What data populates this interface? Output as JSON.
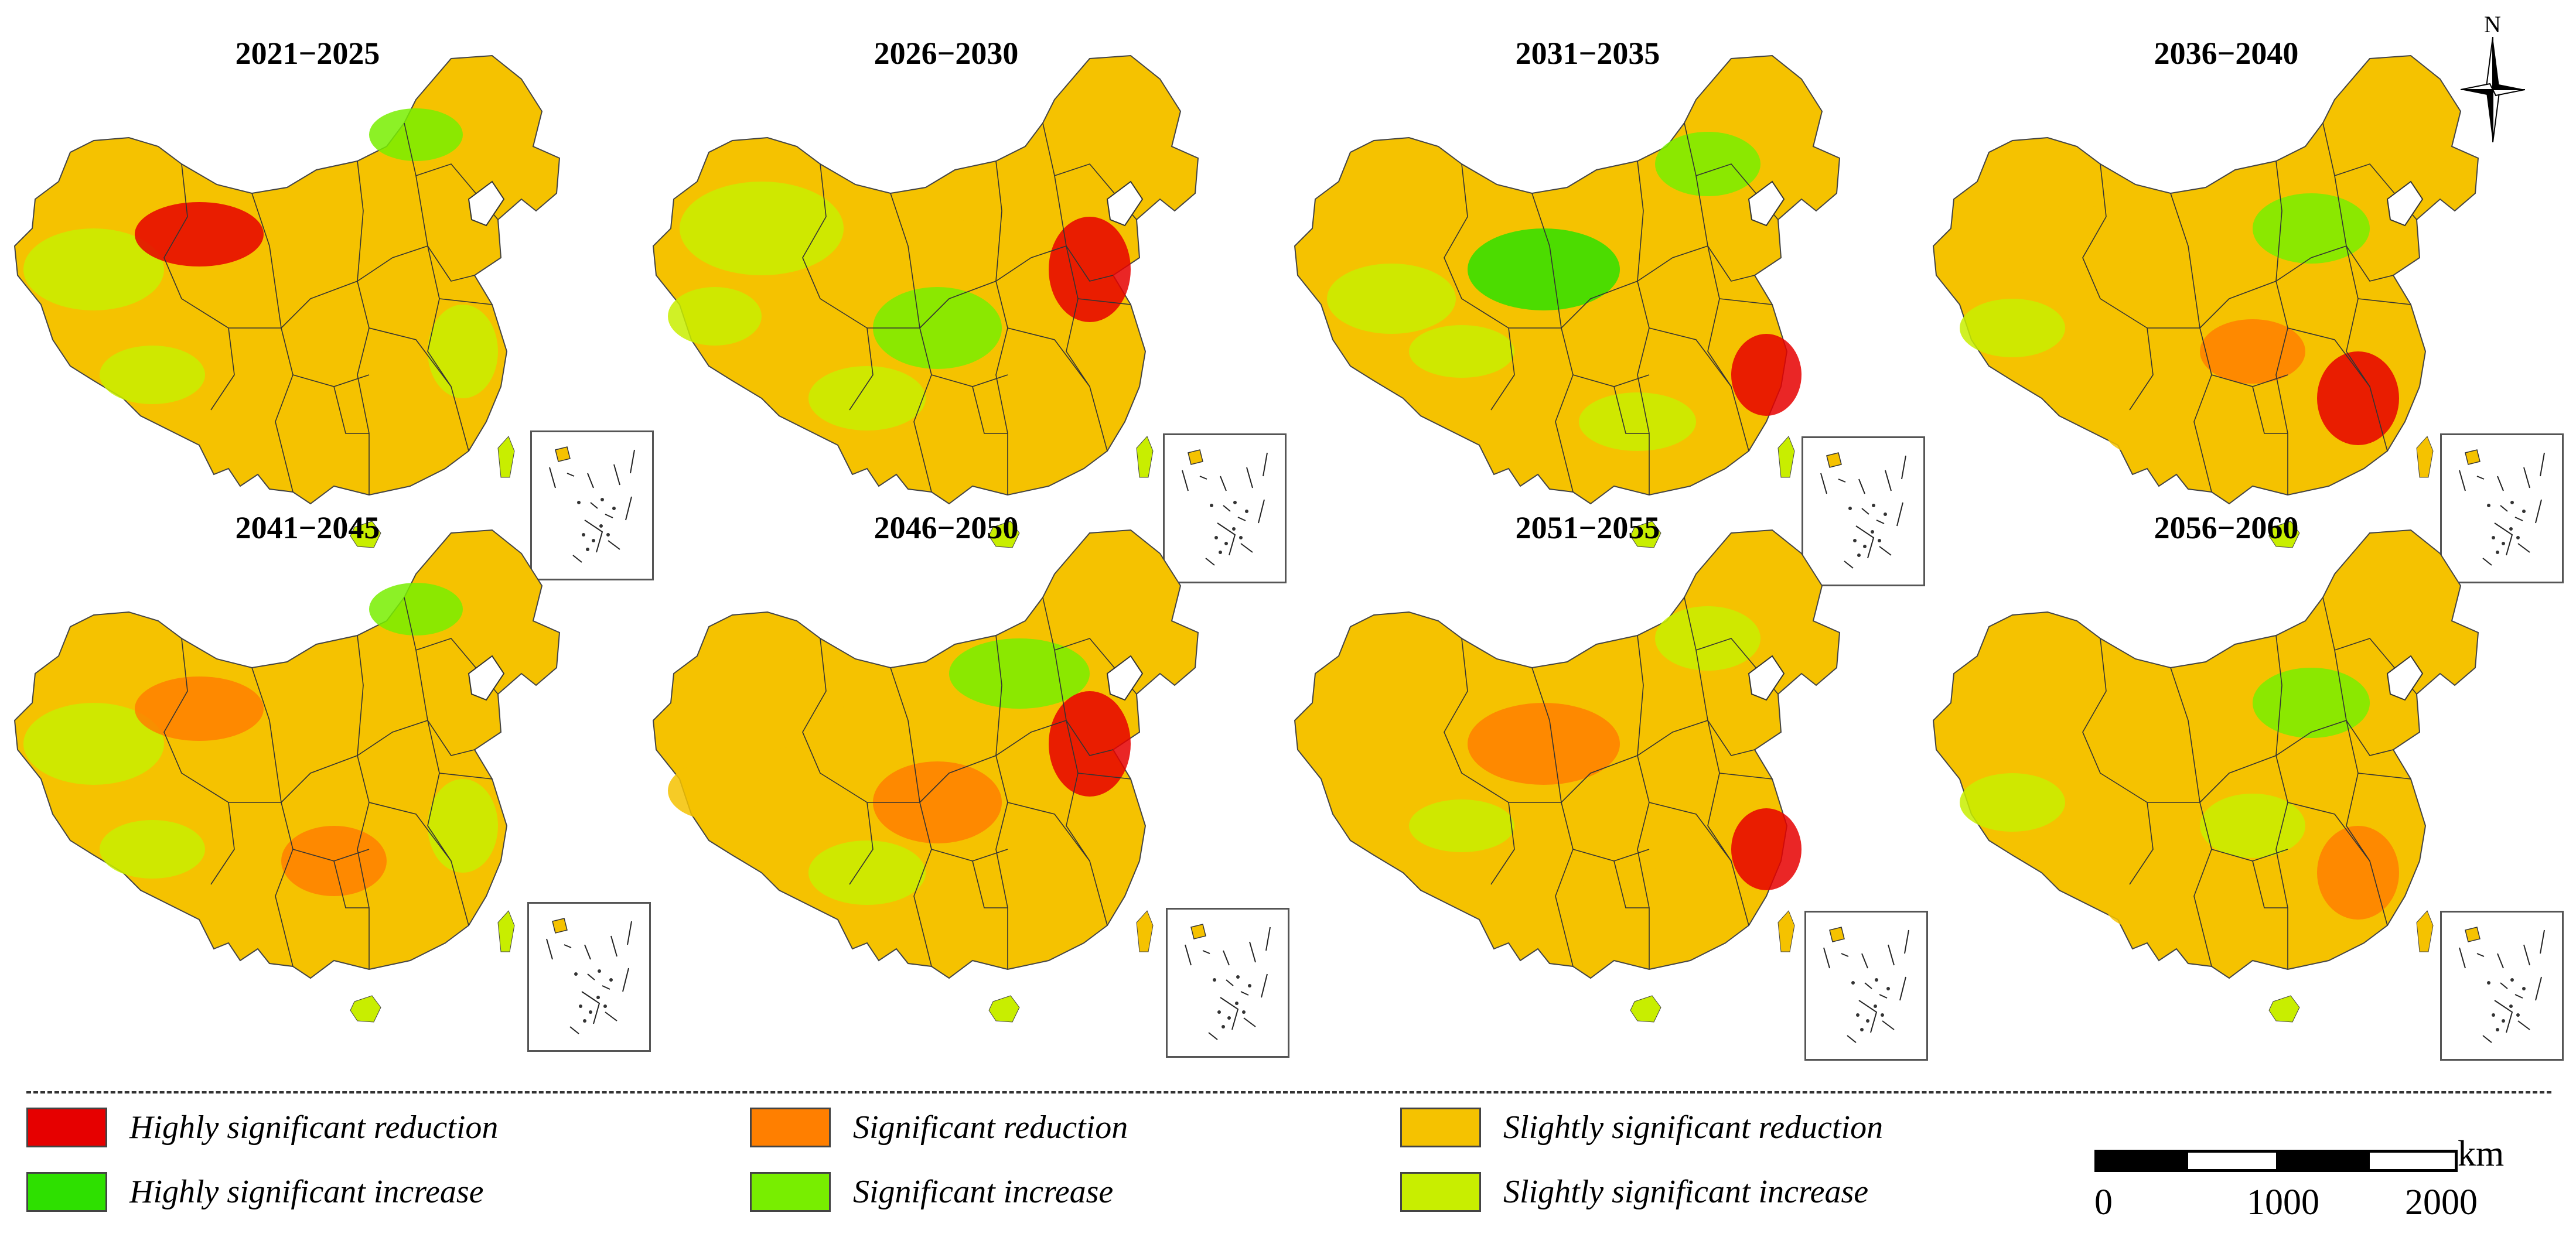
{
  "panels": [
    {
      "title": "2021−2025",
      "scheme": [
        "#f5c200",
        "#c8ee00",
        "#78ee00",
        "#f5c200",
        "#e60000",
        "#c8ee00"
      ]
    },
    {
      "title": "2026−2030",
      "scheme": [
        "#f5c200",
        "#c8ee00",
        "#f5c200",
        "#78ee00",
        "#e60000",
        "#c8ee00"
      ]
    },
    {
      "title": "2031−2035",
      "scheme": [
        "#f5c200",
        "#c8ee00",
        "#78ee00",
        "#2ee000",
        "#e60000",
        "#c8ee00"
      ]
    },
    {
      "title": "2036−2040",
      "scheme": [
        "#f5c200",
        "#f5c200",
        "#78ee00",
        "#ff7f00",
        "#e60000",
        "#c8ee00"
      ]
    },
    {
      "title": "2041−2045",
      "scheme": [
        "#f5c200",
        "#c8ee00",
        "#78ee00",
        "#ff7f00",
        "#ff7f00",
        "#c8ee00"
      ]
    },
    {
      "title": "2046−2050",
      "scheme": [
        "#f5c200",
        "#f5c200",
        "#78ee00",
        "#ff7f00",
        "#e60000",
        "#c8ee00"
      ]
    },
    {
      "title": "2051−2055",
      "scheme": [
        "#f5c200",
        "#f5c200",
        "#c8ee00",
        "#ff7f00",
        "#e60000",
        "#c8ee00"
      ]
    },
    {
      "title": "2056−2060",
      "scheme": [
        "#f5c200",
        "#f5c200",
        "#78ee00",
        "#c8ee00",
        "#ff7f00",
        "#c8ee00"
      ]
    }
  ],
  "north_arrow": {
    "label": "N"
  },
  "legend": [
    {
      "label": "Highly significant reduction",
      "color": "#e60000"
    },
    {
      "label": "Significant reduction",
      "color": "#ff7f00"
    },
    {
      "label": "Slightly significant reduction",
      "color": "#f5c200"
    },
    {
      "label": "Highly significant increase",
      "color": "#2ee000"
    },
    {
      "label": "Significant increase",
      "color": "#78ee00"
    },
    {
      "label": "Slightly significant increase",
      "color": "#c8ee00"
    }
  ],
  "scale_bar": {
    "unit": "km",
    "ticks": [
      "0",
      "1000",
      "2000"
    ]
  }
}
